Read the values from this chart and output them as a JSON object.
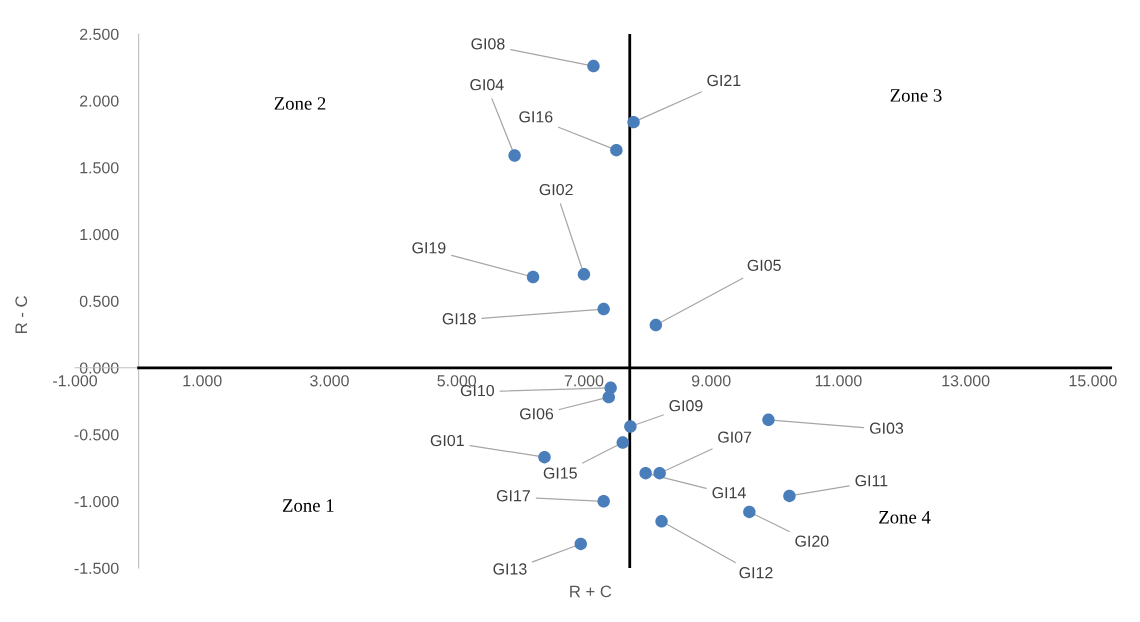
{
  "chart_data": {
    "type": "scatter",
    "xlabel": "R + C",
    "ylabel": "R - C",
    "x": [
      7.15,
      7.78,
      7.51,
      5.91,
      7.0,
      6.2,
      7.31,
      8.13,
      7.42,
      7.39,
      7.73,
      7.61,
      6.38,
      7.97,
      8.19,
      7.31,
      8.22,
      6.95,
      9.6,
      9.9,
      10.23
    ],
    "series": [
      {
        "color": "#4a7ebb",
        "values": [
          2.26,
          1.84,
          1.63,
          1.59,
          0.7,
          0.68,
          0.44,
          0.32,
          -0.15,
          -0.22,
          -0.44,
          -0.56,
          -0.67,
          -0.79,
          -0.79,
          -1.0,
          -1.15,
          -1.32,
          -1.08,
          -0.39,
          -0.96
        ]
      }
    ],
    "marker": "circle",
    "grid": false,
    "xlim": [
      -1,
      15.3
    ],
    "xticks": [
      {
        "value": -1,
        "label": "-1.000"
      },
      {
        "value": 1,
        "label": "1.000"
      },
      {
        "value": 3,
        "label": "3.000"
      },
      {
        "value": 5,
        "label": "5.000"
      },
      {
        "value": 7,
        "label": "7.000"
      },
      {
        "value": 9,
        "label": "9.000"
      },
      {
        "value": 11,
        "label": "11.000"
      },
      {
        "value": 13,
        "label": "13.000"
      },
      {
        "value": 15,
        "label": "15.000"
      }
    ],
    "ylim": [
      -1.5,
      2.5
    ],
    "yticks": [
      {
        "value": -1.5,
        "label": "-1.500"
      },
      {
        "value": -1,
        "label": "-1.000"
      },
      {
        "value": -0.5,
        "label": "-0.500"
      },
      {
        "value": 0,
        "label": "0.000"
      },
      {
        "value": 0.5,
        "label": "0.500"
      },
      {
        "value": 1,
        "label": "1.000"
      },
      {
        "value": 1.5,
        "label": "1.500"
      },
      {
        "value": 2,
        "label": "2.000"
      },
      {
        "value": 2.5,
        "label": "2.500"
      }
    ],
    "ref_lines": [
      {
        "axis": "x",
        "value": 7.72,
        "color": "#000000"
      },
      {
        "axis": "y",
        "value": 0,
        "color": "#000000"
      }
    ],
    "annotations": [
      "Zone 2",
      "Zone 3",
      "Zone 1",
      "Zone 4",
      {
        "text": "GI08",
        "x": 7.15,
        "y": 2.26
      },
      {
        "text": "GI21",
        "x": 7.78,
        "y": 1.84
      },
      {
        "text": "GI16",
        "x": 7.51,
        "y": 1.63
      },
      {
        "text": "GI04",
        "x": 5.91,
        "y": 1.59
      },
      {
        "text": "GI02",
        "x": 7.0,
        "y": 0.7
      },
      {
        "text": "GI19",
        "x": 6.2,
        "y": 0.68
      },
      {
        "text": "GI18",
        "x": 7.31,
        "y": 0.44
      },
      {
        "text": "GI05",
        "x": 8.13,
        "y": 0.32
      },
      {
        "text": "GI10",
        "x": 7.42,
        "y": -0.15
      },
      {
        "text": "GI06",
        "x": 7.39,
        "y": -0.22
      },
      {
        "text": "GI09",
        "x": 7.73,
        "y": -0.44
      },
      {
        "text": "GI15",
        "x": 7.61,
        "y": -0.56
      },
      {
        "text": "GI01",
        "x": 6.38,
        "y": -0.67
      },
      {
        "text": "GI14",
        "x": 7.97,
        "y": -0.79
      },
      {
        "text": "GI07",
        "x": 8.19,
        "y": -0.79
      },
      {
        "text": "GI17",
        "x": 7.31,
        "y": -1.0
      },
      {
        "text": "GI12",
        "x": 8.22,
        "y": -1.15
      },
      {
        "text": "GI13",
        "x": 6.95,
        "y": -1.32
      },
      {
        "text": "GI20",
        "x": 9.6,
        "y": -1.08
      },
      {
        "text": "GI03",
        "x": 9.9,
        "y": -0.39
      },
      {
        "text": "GI11",
        "x": 10.23,
        "y": -0.96
      }
    ]
  }
}
